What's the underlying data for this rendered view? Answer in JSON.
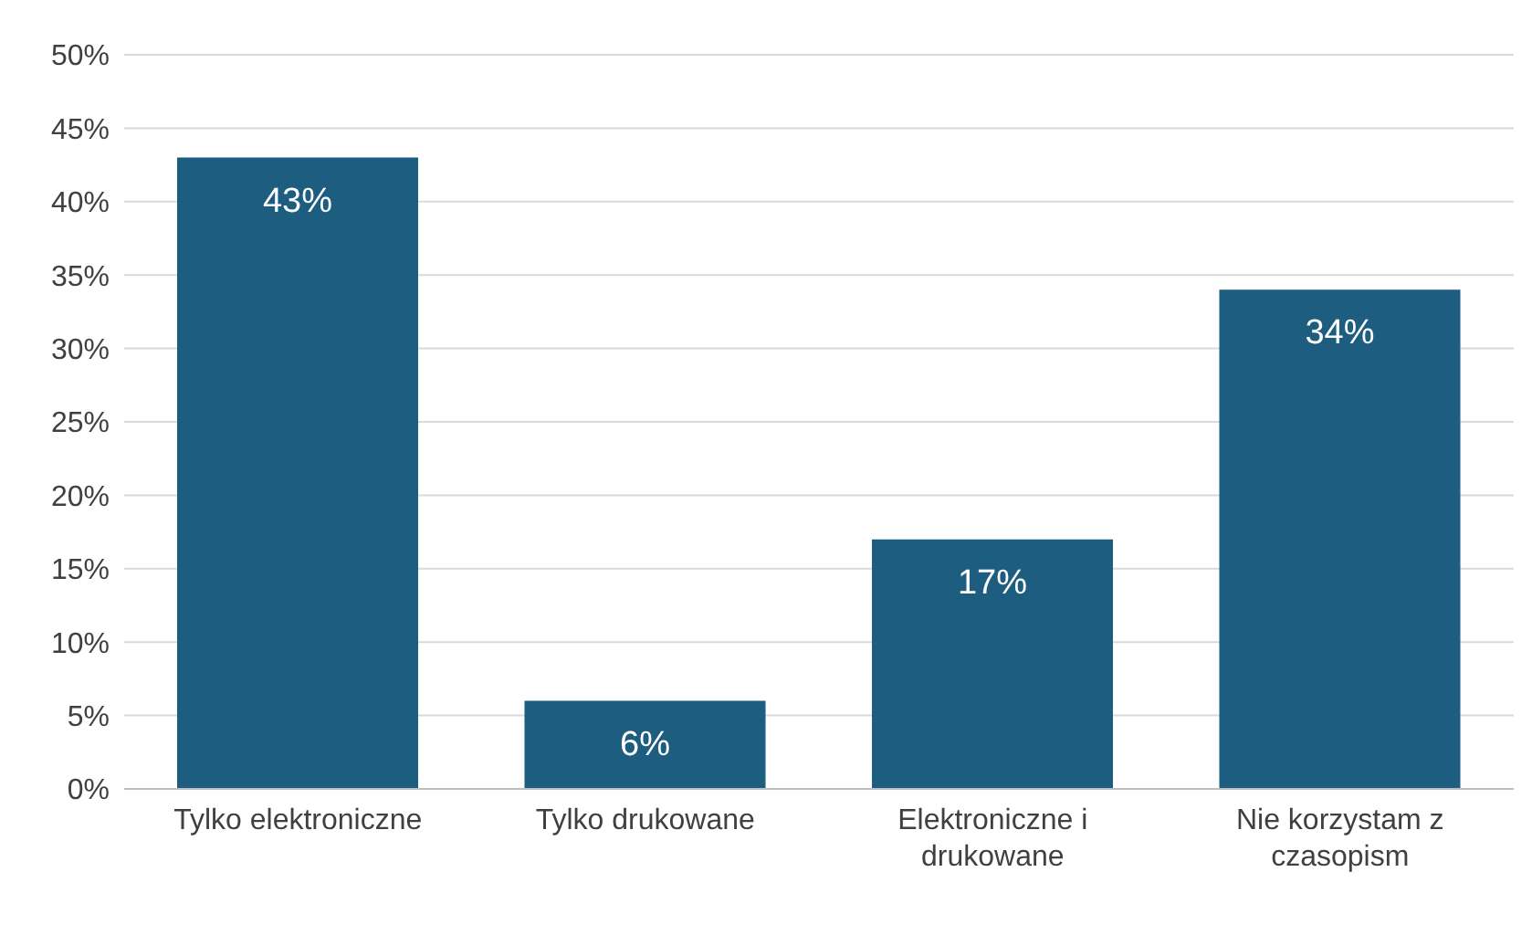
{
  "chart_data": {
    "type": "bar",
    "categories": [
      "Tylko elektroniczne",
      "Tylko drukowane",
      "Elektroniczne i drukowane",
      "Nie korzystam z czasopism"
    ],
    "values": [
      43,
      6,
      17,
      34
    ],
    "value_labels": [
      "43%",
      "6%",
      "17%",
      "34%"
    ],
    "color": "#1d5d80",
    "ylim": [
      0,
      50
    ],
    "yticks": [
      {
        "value": 0,
        "label": "0%"
      },
      {
        "value": 5,
        "label": "5%"
      },
      {
        "value": 10,
        "label": "10%"
      },
      {
        "value": 15,
        "label": "15%"
      },
      {
        "value": 20,
        "label": "20%"
      },
      {
        "value": 25,
        "label": "25%"
      },
      {
        "value": 30,
        "label": "30%"
      },
      {
        "value": 35,
        "label": "35%"
      },
      {
        "value": 40,
        "label": "40%"
      },
      {
        "value": 45,
        "label": "45%"
      },
      {
        "value": 50,
        "label": "50%"
      }
    ],
    "grid": "y"
  }
}
